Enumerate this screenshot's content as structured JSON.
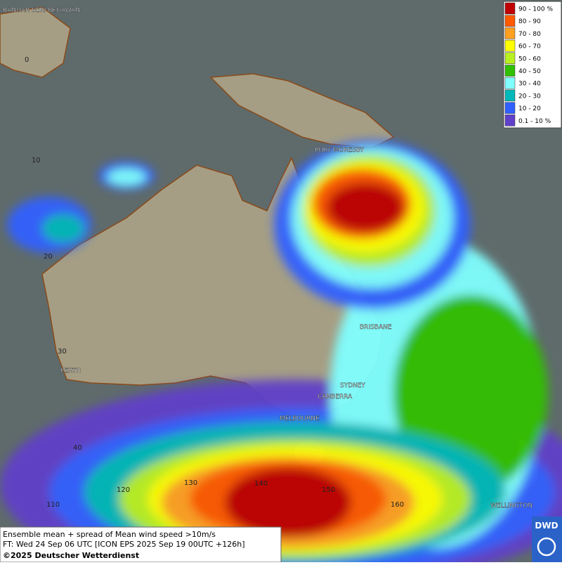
{
  "header": {
    "cities": [
      "BANDAR SERI BEGAWAN",
      "PORT MORESBY",
      "BRISBANE",
      "SYDNEY",
      "CANBERRA",
      "MELBOURNE",
      "PERTH",
      "WELLINGTON"
    ],
    "grid_labels": [
      "0",
      "10",
      "20",
      "30",
      "40",
      "110",
      "120",
      "130",
      "140",
      "150",
      "160"
    ]
  },
  "legend": {
    "items": [
      {
        "label": "90 - 100 %",
        "color": "#c00000"
      },
      {
        "label": "80 - 90",
        "color": "#ff5a00"
      },
      {
        "label": "70 - 80",
        "color": "#ffa020"
      },
      {
        "label": "60 - 70",
        "color": "#ffff00"
      },
      {
        "label": "50 - 60",
        "color": "#b8f020"
      },
      {
        "label": "40 - 50",
        "color": "#30c000"
      },
      {
        "label": "30 - 40",
        "color": "#80ffff"
      },
      {
        "label": "20 - 30",
        "color": "#00b8b8"
      },
      {
        "label": "10 - 20",
        "color": "#3060ff"
      },
      {
        "label": "0.1 - 10 %",
        "color": "#6040c8"
      }
    ]
  },
  "footer": {
    "line1": "Ensemble mean + spread of Mean wind speed >10m/s",
    "line2": "FT: Wed 24 Sep 06 UTC [ICON EPS 2025 Sep 19 00UTC +126h]",
    "copyright": "©2025 Deutscher Wetterdienst"
  },
  "logo": "DWD"
}
